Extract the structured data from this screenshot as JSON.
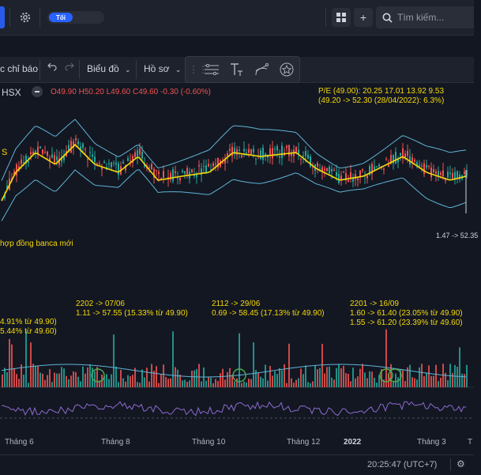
{
  "topbar": {
    "theme_label": "Tối",
    "search_placeholder": "Tìm kiếm...",
    "plus_label": "+"
  },
  "toolbar": {
    "indicators_label": "c chỉ báo",
    "chart_type_label": "Biểu đồ",
    "profile_label": "Hồ sơ"
  },
  "legend": {
    "exchange": "HSX",
    "open": "O49.90",
    "high": "H50.20",
    "low": "L49.60",
    "close": "C49.60",
    "change": "-0.30 (-0.60%)"
  },
  "annotations": {
    "pe_line1": "P/E (49.00): 20.25 17.01 13.92 9.53",
    "pe_line2": "(49.20 -> 52.30 (28/04/2022): 6.3%)",
    "banca": "hợp đồng banca mới",
    "price_tag": "1.47 -> 52.35",
    "s_marker": "S",
    "left_line1": "4.91% từ 49.90)",
    "left_line2": "5.44% từ 49.60)",
    "sig1_line1": "2202 -> 07/06",
    "sig1_line2": "1.11 -> 57.55 (15.33% từ 49.90)",
    "sig2_line1": "2112 -> 29/06",
    "sig2_line2": "0.69 -> 58.45 (17.13% từ 49.90)",
    "sig3_line1": "2201 -> 16/09",
    "sig3_line2": "1.60 -> 61.40 (23.05% từ 49.90)",
    "sig3_line3": "1.55 -> 61.20 (23.39% từ 49.60)"
  },
  "x_axis": {
    "ticks": [
      "Tháng 6",
      "Tháng 8",
      "Tháng 10",
      "Tháng 12",
      "2022",
      "Tháng 3",
      "T"
    ]
  },
  "status": {
    "time": "20:25:47 (UTC+7)"
  },
  "colors": {
    "background": "#131722",
    "panel": "#1e222d",
    "accent": "#2962ff",
    "up": "#26a69a",
    "down": "#ef5350",
    "bollinger": "#5fb4d6",
    "ma": "#f5d90a",
    "oscillator": "#8c6bd0",
    "annotation_text": "#f5d90a",
    "circle": "#4caf50"
  },
  "icons": [
    "gear-icon",
    "grid-icon",
    "plus-icon",
    "search-icon",
    "undo-icon",
    "redo-icon",
    "chevron-down-icon",
    "drag-handle-icon",
    "lines-tool-icon",
    "text-tool-icon",
    "path-tool-icon",
    "star-tool-icon",
    "minus-icon"
  ]
}
